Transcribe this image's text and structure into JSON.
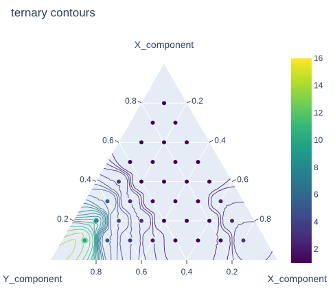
{
  "chart_data": {
    "type": "ternary-contour",
    "title": "ternary contours",
    "axes": {
      "top": {
        "title": "X_component",
        "ticks": [
          "0.8",
          "0.6",
          "0.4",
          "0.2"
        ]
      },
      "right": {
        "title": "X_component",
        "ticks": [
          "0.2",
          "0.4",
          "0.6",
          "0.8"
        ]
      },
      "left": {
        "title": "Y_component",
        "ticks": [
          "0.8",
          "0.6",
          "0.4",
          "0.2"
        ]
      }
    },
    "colorbar": {
      "range": [
        1,
        16
      ],
      "ticks": [
        "2",
        "4",
        "6",
        "8",
        "10",
        "12",
        "14",
        "16"
      ]
    },
    "colorscale": [
      "#440154",
      "#482878",
      "#3e4989",
      "#31688e",
      "#26828e",
      "#1f9e89",
      "#35b779",
      "#6ece58",
      "#b5de2b",
      "#fde725"
    ],
    "background": "#e5ecf6",
    "contour_levels": [
      1.5,
      2.0,
      2.5,
      3.0,
      3.5,
      4.0,
      4.5,
      5.0,
      5.5,
      6.0,
      6.5,
      7.0,
      7.5,
      8.0,
      8.5,
      9.0,
      9.5,
      10.0,
      11.0,
      12.0,
      13.0,
      14.0
    ],
    "points": [
      {
        "a": 0.8,
        "b": 0.1,
        "value": 1.0
      },
      {
        "a": 0.7,
        "b": 0.2,
        "value": 1.0
      },
      {
        "a": 0.7,
        "b": 0.1,
        "value": 1.0
      },
      {
        "a": 0.6,
        "b": 0.3,
        "value": 1.0
      },
      {
        "a": 0.6,
        "b": 0.2,
        "value": 1.0
      },
      {
        "a": 0.6,
        "b": 0.1,
        "value": 1.0
      },
      {
        "a": 0.5,
        "b": 0.4,
        "value": 1.0
      },
      {
        "a": 0.5,
        "b": 0.3,
        "value": 1.0
      },
      {
        "a": 0.5,
        "b": 0.2,
        "value": 1.0
      },
      {
        "a": 0.5,
        "b": 0.1,
        "value": 1.0
      },
      {
        "a": 0.4,
        "b": 0.5,
        "value": 3.5
      },
      {
        "a": 0.4,
        "b": 0.4,
        "value": 1.0
      },
      {
        "a": 0.4,
        "b": 0.3,
        "value": 1.0
      },
      {
        "a": 0.4,
        "b": 0.2,
        "value": 1.0
      },
      {
        "a": 0.4,
        "b": 0.1,
        "value": 1.0
      },
      {
        "a": 0.3,
        "b": 0.6,
        "value": 5.5
      },
      {
        "a": 0.3,
        "b": 0.5,
        "value": 3.0
      },
      {
        "a": 0.3,
        "b": 0.4,
        "value": 1.0
      },
      {
        "a": 0.3,
        "b": 0.3,
        "value": 1.0
      },
      {
        "a": 0.3,
        "b": 0.2,
        "value": 1.0
      },
      {
        "a": 0.3,
        "b": 0.1,
        "value": 2.5
      },
      {
        "a": 0.2,
        "b": 0.7,
        "value": 8.0
      },
      {
        "a": 0.2,
        "b": 0.6,
        "value": 4.5
      },
      {
        "a": 0.2,
        "b": 0.5,
        "value": 3.0
      },
      {
        "a": 0.2,
        "b": 0.4,
        "value": 1.0
      },
      {
        "a": 0.2,
        "b": 0.3,
        "value": 1.0
      },
      {
        "a": 0.2,
        "b": 0.2,
        "value": 1.0
      },
      {
        "a": 0.2,
        "b": 0.1,
        "value": 3.0
      },
      {
        "a": 0.1,
        "b": 0.8,
        "value": 10.0
      },
      {
        "a": 0.1,
        "b": 0.7,
        "value": 5.0
      },
      {
        "a": 0.1,
        "b": 0.6,
        "value": 3.5
      },
      {
        "a": 0.1,
        "b": 0.5,
        "value": 2.0
      },
      {
        "a": 0.1,
        "b": 0.4,
        "value": 1.0
      },
      {
        "a": 0.1,
        "b": 0.3,
        "value": 1.0
      },
      {
        "a": 0.1,
        "b": 0.2,
        "value": 1.5
      },
      {
        "a": 0.1,
        "b": 0.1,
        "value": 3.5
      }
    ]
  }
}
